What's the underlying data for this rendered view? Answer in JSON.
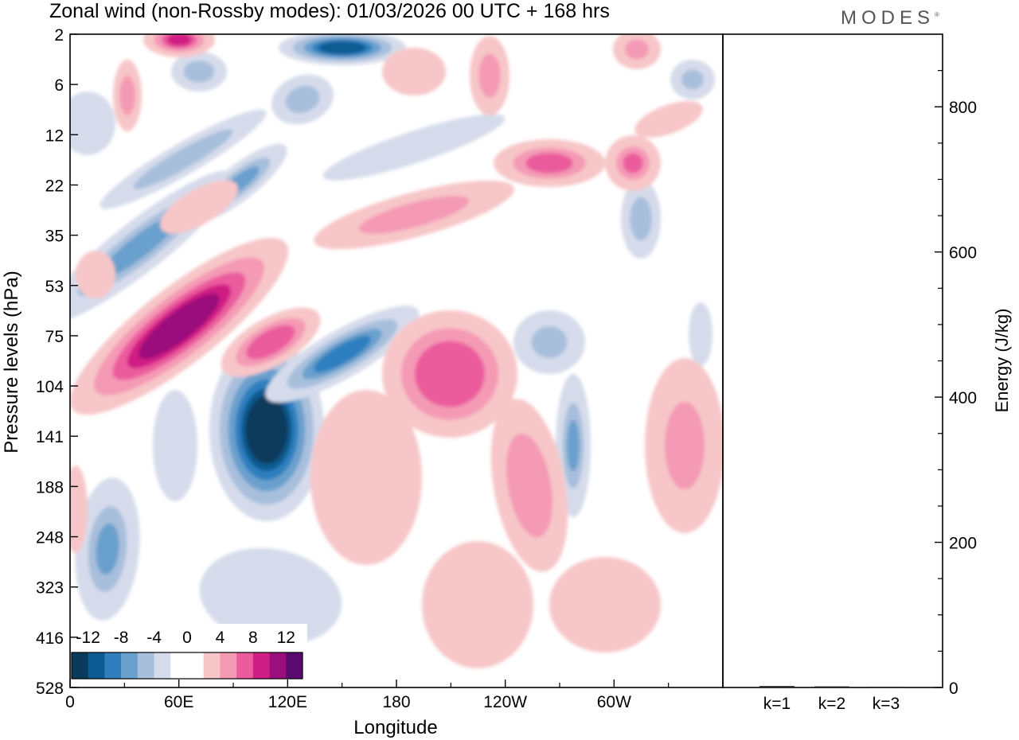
{
  "title": "Zonal wind (non-Rossby modes):  01/03/2026  00 UTC  + 168 hrs",
  "brand": "MODES",
  "brand_mark": "®",
  "chart_data": [
    {
      "type": "heatmap",
      "title": "Zonal wind (non-Rossby modes)",
      "xlabel": "Longitude",
      "ylabel": "Pressure levels (hPa)",
      "x_ticks": [
        "0",
        "60E",
        "120E",
        "180",
        "120W",
        "60W"
      ],
      "y_ticks": [
        "2",
        "6",
        "12",
        "22",
        "35",
        "53",
        "75",
        "104",
        "141",
        "188",
        "248",
        "323",
        "416",
        "528"
      ],
      "colorbar": {
        "labels": [
          "-12",
          "-8",
          "-4",
          "0",
          "4",
          "8",
          "12"
        ],
        "colors": [
          "#0a3a5c",
          "#0d5b92",
          "#2f7fbf",
          "#6aa0cd",
          "#a8bfdc",
          "#d5dbeb",
          "#ffffff",
          "#ffffff",
          "#f7c6c8",
          "#f49ab5",
          "#eb5c9d",
          "#d01f84",
          "#9b0f7c",
          "#5a0a6e"
        ]
      },
      "features": [
        {
          "sign": "negative",
          "peak": -14,
          "lon": "100E-125E",
          "level": "104-188 hPa"
        },
        {
          "sign": "positive",
          "peak": 12,
          "lon": "20E-60E",
          "level": "53-141 hPa"
        },
        {
          "sign": "positive",
          "peak": 9,
          "lon": "180-160W",
          "level": "104-141 hPa"
        },
        {
          "sign": "negative",
          "peak": -8,
          "lon": "145E-160E",
          "level": "2 hPa"
        }
      ]
    },
    {
      "type": "bar",
      "ylabel": "Energy (J/kg)",
      "categories": [
        "k=1",
        "k=2",
        "k=3"
      ],
      "values": [
        2,
        1.5,
        1
      ],
      "ylim": [
        0,
        900
      ],
      "y_ticks": [
        0,
        200,
        400,
        600,
        800
      ]
    }
  ]
}
